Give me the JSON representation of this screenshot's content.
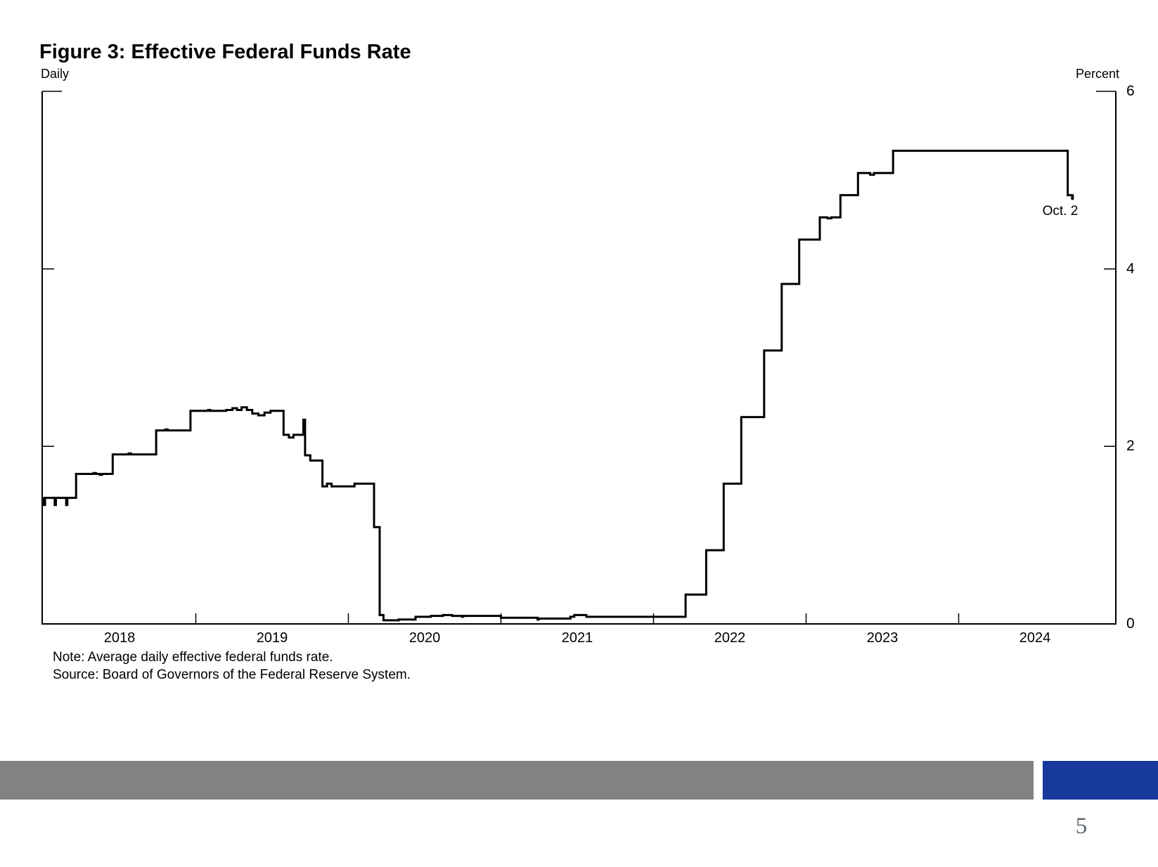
{
  "page": {
    "number": "5"
  },
  "figure": {
    "title": "Figure 3: Effective Federal Funds Rate",
    "frequency_label": "Daily",
    "unit_label": "Percent",
    "note": "Note: Average daily effective federal funds rate.",
    "source": "Source: Board of Governors of the Federal Reserve System.",
    "end_annotation": "Oct. 2"
  },
  "colors": {
    "line": "#000000",
    "axis": "#000000",
    "footer_gray": "#828282",
    "footer_blue": "#17399c"
  },
  "chart_data": {
    "type": "line",
    "title": "Figure 3: Effective Federal Funds Rate",
    "subtitle": "Daily",
    "ylabel": "Percent",
    "ylim": [
      0,
      6
    ],
    "y_ticks": [
      0,
      2,
      4,
      6
    ],
    "y_tick_labels": [
      "6",
      "4",
      "2",
      "0"
    ],
    "x_domain": [
      2017.993,
      2025.03
    ],
    "x_tick_years": [
      2019,
      2020,
      2021,
      2022,
      2023,
      2024
    ],
    "x_tick_labels": [
      "2018",
      "2019",
      "2020",
      "2021",
      "2022",
      "2023",
      "2024"
    ],
    "grid": false,
    "legend": "none",
    "annotation": {
      "label": "Oct. 2",
      "t": 2024.753,
      "value": 4.83
    },
    "series": [
      {
        "name": "Effective federal funds rate (percent, daily average)",
        "step": true,
        "end_t": 2024.753,
        "points": [
          [
            2018.0,
            1.42
          ],
          [
            2018.004,
            1.34
          ],
          [
            2018.012,
            1.42
          ],
          [
            2018.075,
            1.34
          ],
          [
            2018.083,
            1.42
          ],
          [
            2018.15,
            1.34
          ],
          [
            2018.158,
            1.42
          ],
          [
            2018.215,
            1.69
          ],
          [
            2018.33,
            1.7
          ],
          [
            2018.345,
            1.69
          ],
          [
            2018.37,
            1.68
          ],
          [
            2018.385,
            1.69
          ],
          [
            2018.455,
            1.91
          ],
          [
            2018.56,
            1.92
          ],
          [
            2018.575,
            1.91
          ],
          [
            2018.74,
            2.18
          ],
          [
            2018.8,
            2.19
          ],
          [
            2018.815,
            2.18
          ],
          [
            2018.965,
            2.4
          ],
          [
            2019.08,
            2.41
          ],
          [
            2019.095,
            2.4
          ],
          [
            2019.2,
            2.41
          ],
          [
            2019.24,
            2.43
          ],
          [
            2019.27,
            2.41
          ],
          [
            2019.3,
            2.44
          ],
          [
            2019.335,
            2.41
          ],
          [
            2019.37,
            2.37
          ],
          [
            2019.41,
            2.35
          ],
          [
            2019.45,
            2.38
          ],
          [
            2019.49,
            2.4
          ],
          [
            2019.575,
            2.13
          ],
          [
            2019.61,
            2.1
          ],
          [
            2019.64,
            2.13
          ],
          [
            2019.705,
            2.3
          ],
          [
            2019.716,
            1.9
          ],
          [
            2019.75,
            1.84
          ],
          [
            2019.83,
            1.55
          ],
          [
            2019.86,
            1.58
          ],
          [
            2019.89,
            1.55
          ],
          [
            2020.04,
            1.58
          ],
          [
            2020.168,
            1.09
          ],
          [
            2020.205,
            0.1
          ],
          [
            2020.23,
            0.04
          ],
          [
            2020.33,
            0.05
          ],
          [
            2020.44,
            0.08
          ],
          [
            2020.54,
            0.09
          ],
          [
            2020.62,
            0.1
          ],
          [
            2020.68,
            0.09
          ],
          [
            2020.745,
            0.08
          ],
          [
            2020.752,
            0.09
          ],
          [
            2020.9,
            0.09
          ],
          [
            2021.0,
            0.07
          ],
          [
            2021.15,
            0.07
          ],
          [
            2021.24,
            0.05
          ],
          [
            2021.248,
            0.06
          ],
          [
            2021.4,
            0.06
          ],
          [
            2021.455,
            0.08
          ],
          [
            2021.48,
            0.1
          ],
          [
            2021.56,
            0.08
          ],
          [
            2021.8,
            0.08
          ],
          [
            2022.1,
            0.08
          ],
          [
            2022.21,
            0.33
          ],
          [
            2022.345,
            0.83
          ],
          [
            2022.46,
            1.58
          ],
          [
            2022.575,
            2.33
          ],
          [
            2022.725,
            3.08
          ],
          [
            2022.84,
            3.83
          ],
          [
            2022.955,
            4.33
          ],
          [
            2023.09,
            4.58
          ],
          [
            2023.14,
            4.57
          ],
          [
            2023.165,
            4.58
          ],
          [
            2023.225,
            4.83
          ],
          [
            2023.34,
            5.08
          ],
          [
            2023.42,
            5.06
          ],
          [
            2023.445,
            5.08
          ],
          [
            2023.57,
            5.33
          ],
          [
            2024.4,
            5.33
          ],
          [
            2024.715,
            4.83
          ],
          [
            2024.744,
            4.79
          ],
          [
            2024.748,
            4.83
          ]
        ]
      }
    ]
  }
}
